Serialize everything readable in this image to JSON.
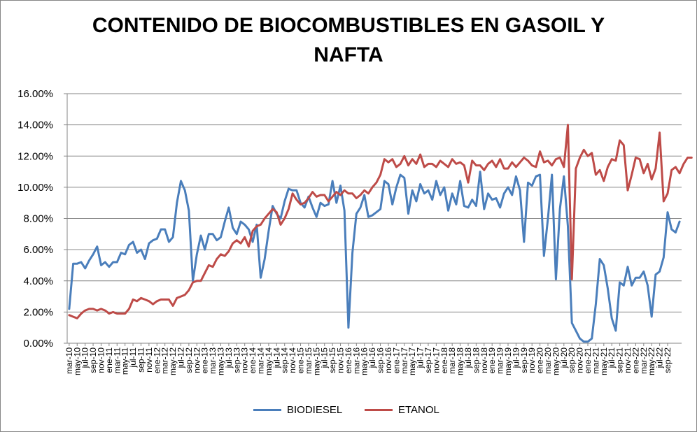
{
  "chart_data": {
    "type": "line",
    "title_lines": [
      "CONTENIDO DE BIOCOMBUSTIBLES EN GASOIL Y",
      "NAFTA"
    ],
    "xlabel": "",
    "ylabel": "",
    "ylim": [
      0,
      16
    ],
    "y_ticks": [
      "0.00%",
      "2.00%",
      "4.00%",
      "6.00%",
      "8.00%",
      "10.00%",
      "12.00%",
      "14.00%",
      "16.00%"
    ],
    "grid": true,
    "legend_position": "bottom",
    "x_start": "mar-10",
    "x_end": "oct-22",
    "x_labels": [
      "mar-10",
      "may-10",
      "jul-10",
      "sep-10",
      "nov-10",
      "ene-11",
      "mar-11",
      "may-11",
      "jul-11",
      "sep-11",
      "nov-11",
      "ene-12",
      "mar-12",
      "may-12",
      "jul-12",
      "sep-12",
      "nov-12",
      "ene-13",
      "mar-13",
      "may-13",
      "jul-13",
      "sep-13",
      "nov-13",
      "ene-14",
      "mar-14",
      "may-14",
      "jul-14",
      "sep-14",
      "nov-14",
      "ene-15",
      "mar-15",
      "may-15",
      "jul-15",
      "sep-15",
      "nov-15",
      "ene-16",
      "mar-16",
      "may-16",
      "jul-16",
      "sep-16",
      "nov-16",
      "ene-17",
      "mar-17",
      "may-17",
      "jul-17",
      "sep-17",
      "nov-17",
      "ene-18",
      "mar-18",
      "may-18",
      "jul-18",
      "sep-18",
      "nov-18",
      "ene-19",
      "mar-19",
      "may-19",
      "jul-19",
      "sep-19",
      "nov-19",
      "ene-20",
      "mar-20",
      "may-20",
      "jul-20",
      "sep-20",
      "nov-20",
      "ene-21",
      "mar-21",
      "may-21",
      "jul-21",
      "sep-21",
      "nov-21",
      "ene-22",
      "mar-22",
      "may-22",
      "jul-22",
      "sep-22"
    ],
    "series": [
      {
        "name": "BIODIESEL",
        "color": "#4a7ebb",
        "values": [
          2.2,
          5.1,
          5.1,
          5.2,
          4.8,
          5.3,
          5.7,
          6.2,
          5.0,
          5.2,
          4.9,
          5.2,
          5.2,
          5.8,
          5.7,
          6.3,
          6.5,
          5.8,
          6.0,
          5.4,
          6.4,
          6.6,
          6.7,
          7.3,
          7.3,
          6.5,
          6.8,
          9.0,
          10.4,
          9.8,
          8.5,
          4.0,
          5.7,
          6.9,
          6.0,
          7.0,
          7.0,
          6.6,
          6.8,
          7.8,
          8.7,
          7.4,
          7.0,
          7.8,
          7.6,
          7.3,
          6.5,
          7.6,
          4.2,
          5.4,
          7.2,
          8.8,
          8.3,
          8.0,
          9.1,
          9.9,
          9.8,
          9.8,
          9.0,
          8.7,
          9.4,
          8.7,
          8.1,
          9.0,
          8.8,
          8.9,
          10.4,
          9.0,
          10.1,
          8.5,
          1.0,
          5.8,
          8.3,
          8.7,
          9.5,
          8.1,
          8.2,
          8.4,
          8.6,
          10.4,
          10.2,
          8.9,
          10.0,
          10.8,
          10.6,
          8.3,
          9.8,
          9.1,
          10.2,
          9.6,
          9.8,
          9.2,
          10.4,
          9.5,
          10.0,
          8.5,
          9.6,
          8.9,
          10.4,
          8.8,
          8.7,
          9.2,
          8.8,
          11.0,
          8.6,
          9.6,
          9.2,
          9.3,
          8.7,
          9.6,
          10.0,
          9.5,
          10.7,
          9.8,
          6.5,
          10.3,
          10.1,
          10.7,
          10.8,
          5.6,
          8.0,
          10.8,
          4.1,
          8.6,
          10.7,
          7.5,
          1.3,
          0.8,
          0.3,
          0.1,
          0.1,
          0.3,
          2.5,
          5.4,
          5.0,
          3.5,
          1.6,
          0.8,
          3.9,
          3.7,
          4.9,
          3.7,
          4.2,
          4.2,
          4.6,
          3.7,
          1.7,
          4.4,
          4.6,
          5.5,
          8.4,
          7.3,
          7.1,
          7.8
        ]
      },
      {
        "name": "ETANOL",
        "color": "#be4b48",
        "values": [
          1.8,
          1.7,
          1.6,
          1.9,
          2.1,
          2.2,
          2.2,
          2.1,
          2.2,
          2.1,
          1.9,
          2.0,
          1.9,
          1.9,
          1.9,
          2.2,
          2.8,
          2.7,
          2.9,
          2.8,
          2.7,
          2.5,
          2.7,
          2.8,
          2.8,
          2.8,
          2.4,
          2.9,
          3.0,
          3.1,
          3.4,
          3.9,
          4.0,
          4.0,
          4.5,
          5.0,
          4.9,
          5.4,
          5.7,
          5.6,
          5.9,
          6.4,
          6.6,
          6.4,
          6.8,
          6.2,
          7.2,
          7.5,
          7.6,
          8.0,
          8.3,
          8.6,
          8.4,
          7.6,
          8.0,
          8.6,
          9.6,
          9.2,
          8.9,
          9.0,
          9.3,
          9.7,
          9.4,
          9.5,
          9.5,
          9.1,
          9.4,
          9.7,
          9.5,
          9.8,
          9.6,
          9.6,
          9.3,
          9.5,
          9.8,
          9.6,
          10.0,
          10.3,
          10.8,
          11.8,
          11.6,
          11.8,
          11.3,
          11.5,
          12.0,
          11.4,
          11.8,
          11.5,
          12.1,
          11.3,
          11.5,
          11.5,
          11.3,
          11.7,
          11.5,
          11.3,
          11.8,
          11.5,
          11.6,
          11.4,
          10.3,
          11.7,
          11.4,
          11.4,
          11.1,
          11.5,
          11.7,
          11.3,
          11.8,
          11.2,
          11.2,
          11.6,
          11.3,
          11.6,
          11.9,
          11.7,
          11.4,
          11.3,
          12.3,
          11.6,
          11.7,
          11.4,
          11.8,
          11.9,
          11.3,
          14.0,
          4.1,
          11.2,
          11.9,
          12.4,
          12.0,
          12.2,
          10.8,
          11.1,
          10.4,
          11.3,
          11.8,
          11.7,
          13.0,
          12.7,
          9.8,
          10.8,
          11.9,
          11.8,
          10.9,
          11.5,
          10.5,
          11.2,
          13.5,
          9.1,
          9.6,
          11.1,
          11.3,
          10.9,
          11.5,
          11.9,
          11.9
        ]
      }
    ]
  }
}
